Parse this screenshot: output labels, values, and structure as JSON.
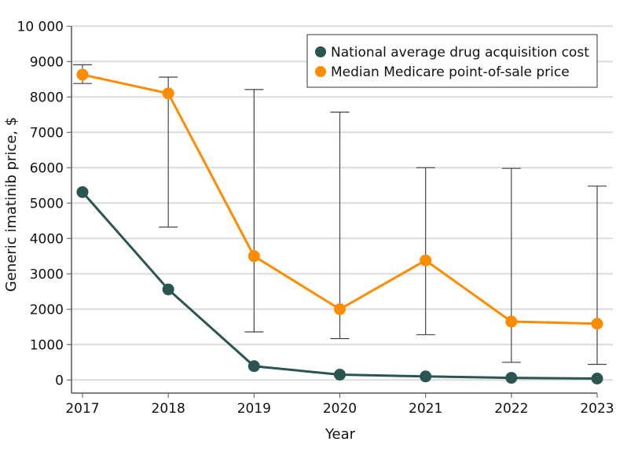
{
  "chart_data": {
    "type": "line",
    "title": "",
    "xlabel": "Year",
    "ylabel": "Generic imatinib price, $",
    "x": [
      2017,
      2018,
      2019,
      2020,
      2021,
      2022,
      2023
    ],
    "x_tick_labels": [
      "2017",
      "2018",
      "2019",
      "2020",
      "2021",
      "2022",
      "2023"
    ],
    "ylim": [
      0,
      10000
    ],
    "y_ticks": [
      0,
      1000,
      2000,
      3000,
      4000,
      5000,
      6000,
      7000,
      8000,
      9000,
      10000
    ],
    "y_tick_labels": [
      "0",
      "1000",
      "2000",
      "3000",
      "4000",
      "5000",
      "6000",
      "7000",
      "8000",
      "9000",
      "10 000"
    ],
    "grid": true,
    "legend_position": "top-right",
    "series": [
      {
        "name": "National average drug acquisition cost",
        "color": "#2a5553",
        "values": [
          5310,
          2560,
          390,
          150,
          100,
          60,
          40
        ]
      },
      {
        "name": "Median Medicare point-of-sale price",
        "color": "#ff8c00",
        "values": [
          8630,
          8100,
          3500,
          2000,
          3380,
          1650,
          1590
        ],
        "error_low": [
          8380,
          4320,
          1360,
          1170,
          1280,
          500,
          440
        ],
        "error_high": [
          8910,
          8560,
          8210,
          7570,
          6000,
          5980,
          5480
        ]
      }
    ]
  }
}
